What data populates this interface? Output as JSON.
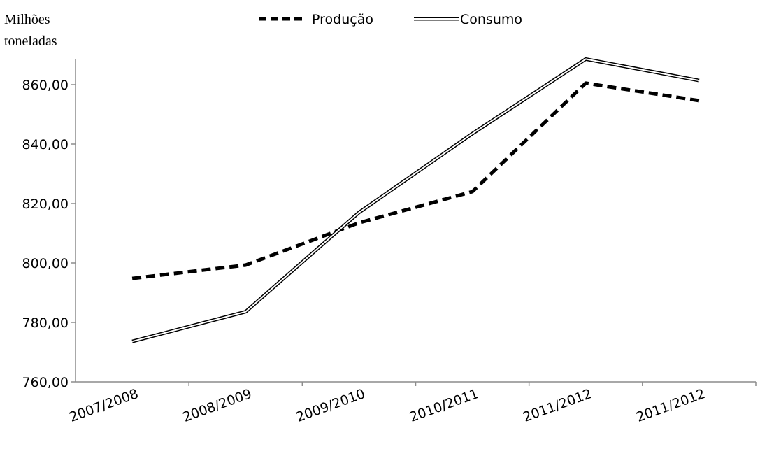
{
  "chart_data": {
    "type": "line",
    "ylabel_lines": [
      "Milhões",
      "toneladas"
    ],
    "categories": [
      "2007/2008",
      "2008/2009",
      "2009/2010",
      "2010/2011",
      "2011/2012",
      "2011/2012"
    ],
    "yticks": [
      "760,00",
      "780,00",
      "800,00",
      "820,00",
      "840,00",
      "860,00"
    ],
    "ylim": [
      760,
      870
    ],
    "grid": false,
    "legend_position": "top-center",
    "series": [
      {
        "name": "Produção",
        "style": "dashed",
        "color": "#000000",
        "values": [
          794.8,
          799.3,
          813.5,
          824.0,
          860.5,
          854.6
        ]
      },
      {
        "name": "Consumo",
        "style": "double",
        "color": "#000000",
        "values": [
          773.6,
          783.6,
          817.0,
          843.5,
          868.6,
          861.4
        ]
      }
    ]
  }
}
